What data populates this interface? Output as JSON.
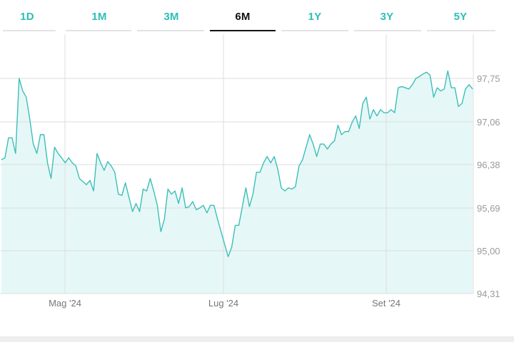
{
  "tabs": [
    {
      "label": "1D",
      "active": false
    },
    {
      "label": "1M",
      "active": false
    },
    {
      "label": "3M",
      "active": false
    },
    {
      "label": "6M",
      "active": true
    },
    {
      "label": "1Y",
      "active": false
    },
    {
      "label": "3Y",
      "active": false
    },
    {
      "label": "5Y",
      "active": false
    }
  ],
  "colors": {
    "accent": "#2bbfb5",
    "line": "#3cbfb8",
    "fill": "#e6f7f7",
    "grid": "#dddddd",
    "axis_text": "#9a9a9a"
  },
  "chart_data": {
    "type": "area",
    "title": "",
    "xlabel": "",
    "ylabel": "",
    "x_tick_labels": [
      "Mag '24",
      "Lug '24",
      "Set '24"
    ],
    "y_tick_labels": [
      "97,75",
      "97,06",
      "96,38",
      "95,69",
      "95,00",
      "94,31"
    ],
    "y_ticks": [
      97.75,
      97.06,
      96.38,
      95.69,
      95.0,
      94.31
    ],
    "ylim": [
      94.31,
      98.44
    ],
    "grid": true,
    "y_axis_position": "right",
    "values": [
      96.45,
      96.48,
      96.8,
      96.8,
      96.55,
      97.75,
      97.55,
      97.45,
      97.1,
      96.7,
      96.55,
      96.85,
      96.85,
      96.4,
      96.15,
      96.65,
      96.55,
      96.48,
      96.4,
      96.48,
      96.4,
      96.35,
      96.15,
      96.1,
      96.05,
      96.12,
      95.95,
      96.55,
      96.4,
      96.28,
      96.42,
      96.35,
      96.25,
      95.9,
      95.88,
      96.08,
      95.85,
      95.62,
      95.75,
      95.62,
      95.98,
      95.95,
      96.15,
      95.95,
      95.72,
      95.3,
      95.5,
      95.98,
      95.9,
      95.95,
      95.75,
      96.0,
      95.68,
      95.7,
      95.78,
      95.65,
      95.68,
      95.72,
      95.6,
      95.72,
      95.72,
      95.5,
      95.3,
      95.1,
      94.9,
      95.05,
      95.4,
      95.4,
      95.7,
      96.0,
      95.7,
      95.9,
      96.25,
      96.25,
      96.4,
      96.5,
      96.4,
      96.5,
      96.3,
      96.0,
      95.95,
      96.0,
      95.98,
      96.02,
      96.35,
      96.45,
      96.65,
      96.85,
      96.7,
      96.5,
      96.7,
      96.7,
      96.62,
      96.7,
      96.75,
      97.0,
      96.85,
      96.9,
      96.9,
      97.05,
      97.15,
      96.95,
      97.35,
      97.45,
      97.1,
      97.25,
      97.15,
      97.25,
      97.2,
      97.2,
      97.25,
      97.2,
      97.6,
      97.62,
      97.6,
      97.58,
      97.65,
      97.75,
      97.78,
      97.82,
      97.85,
      97.8,
      97.45,
      97.6,
      97.55,
      97.58,
      97.87,
      97.6,
      97.6,
      97.3,
      97.35,
      97.58,
      97.65,
      97.58
    ]
  }
}
